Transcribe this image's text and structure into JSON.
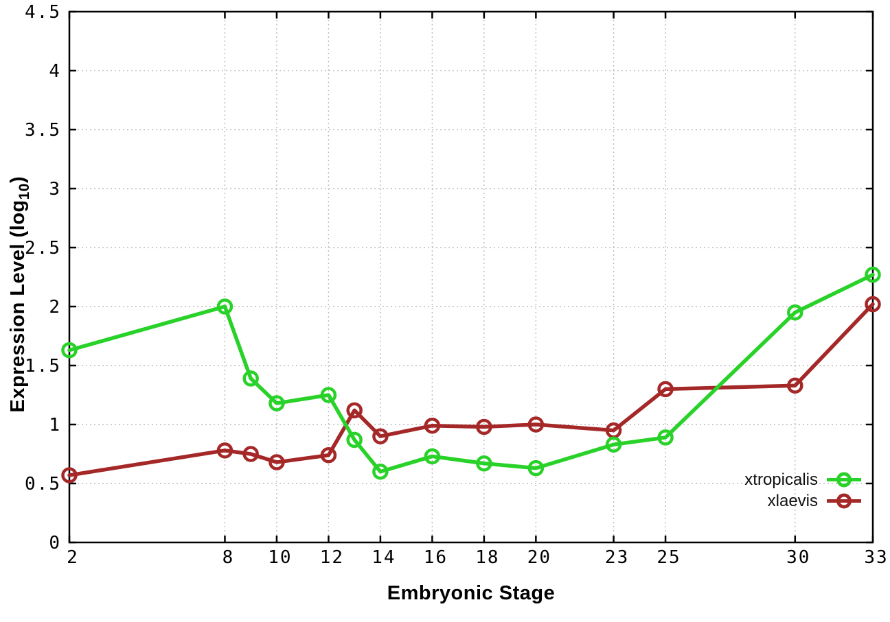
{
  "chart_data": {
    "type": "line",
    "title": "",
    "xlabel": "Embryonic Stage",
    "ylabel": {
      "prefix": "Expression Level (log",
      "sub": "10",
      "suffix": ")"
    },
    "xlim": [
      2,
      33
    ],
    "ylim": [
      0,
      4.5
    ],
    "grid": true,
    "legend_position": "inside-bottom-right",
    "x": [
      2,
      8,
      9,
      10,
      12,
      13,
      14,
      16,
      18,
      20,
      23,
      25,
      30,
      33
    ],
    "x_ticks": [
      2,
      8,
      10,
      12,
      14,
      16,
      18,
      20,
      23,
      25,
      30,
      33
    ],
    "x_tick_labels": [
      "2",
      "8",
      "10",
      "12",
      "14",
      "16",
      "18",
      "20",
      "23",
      "25",
      "30",
      "33"
    ],
    "y_ticks": [
      0,
      0.5,
      1,
      1.5,
      2,
      2.5,
      3,
      3.5,
      4,
      4.5
    ],
    "y_tick_labels": [
      "0",
      "0.5",
      "1",
      "1.5",
      "2",
      "2.5",
      "3",
      "3.5",
      "4",
      "4.5"
    ],
    "series": [
      {
        "name": "xtropicalis",
        "color": "#28D228",
        "values": [
          1.63,
          2.0,
          1.39,
          1.18,
          1.25,
          0.87,
          0.6,
          0.73,
          0.67,
          0.63,
          0.83,
          0.89,
          1.95,
          2.27
        ]
      },
      {
        "name": "xlaevis",
        "color": "#A52828",
        "values": [
          0.57,
          0.78,
          0.75,
          0.68,
          0.74,
          1.12,
          0.9,
          0.99,
          0.98,
          1.0,
          0.95,
          1.3,
          1.33,
          2.02
        ]
      }
    ],
    "style": {
      "grid_color": "#bbbbbb",
      "axis_color": "#000000",
      "tick_label_color": "#000000",
      "plot_background": "#ffffff"
    }
  }
}
